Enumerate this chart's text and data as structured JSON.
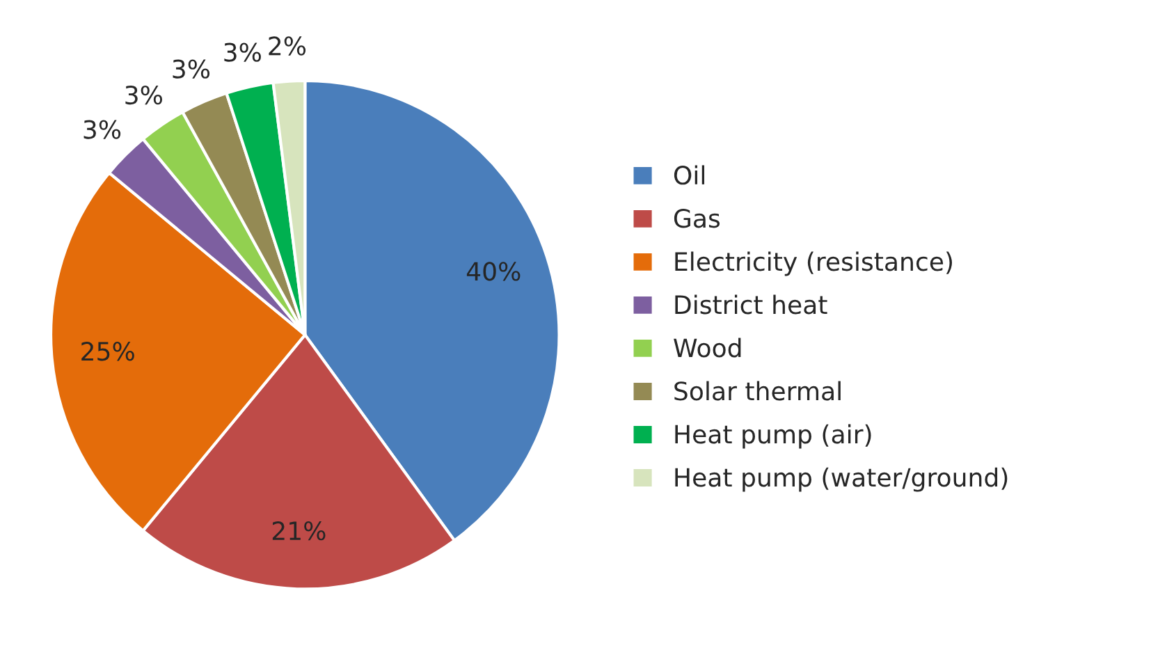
{
  "chart_data": {
    "type": "pie",
    "categories": [
      "Oil",
      "Gas",
      "Electricity (resistance)",
      "District heat",
      "Wood",
      "Solar thermal",
      "Heat pump (air)",
      "Heat pump (water/ground)"
    ],
    "values": [
      40,
      21,
      25,
      3,
      3,
      3,
      3,
      2
    ],
    "value_labels": [
      "40%",
      "21%",
      "25%",
      "3%",
      "3%",
      "3%",
      "3%",
      "2%"
    ],
    "colors": [
      "#4a7ebb",
      "#be4b48",
      "#e46c0a",
      "#7d5fa0",
      "#92d050",
      "#948a54",
      "#00b050",
      "#d7e4bd"
    ],
    "legend": "right"
  }
}
